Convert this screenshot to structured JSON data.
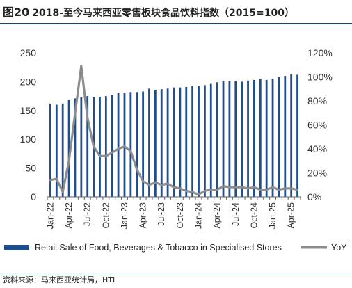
{
  "header": {
    "figure_number": "图20",
    "title": "2018-至今马来西亚零售板块食品饮料指数（2015=100）"
  },
  "footer": {
    "source": "资料来源：马来西亚统计局，HTI"
  },
  "colors": {
    "bars": "#1f4e8c",
    "line": "#8c8c8c",
    "rule": "#1f3f7a"
  },
  "chart_data": {
    "type": "bar",
    "x": [
      "Jan-22",
      "Feb-22",
      "Mar-22",
      "Apr-22",
      "May-22",
      "Jun-22",
      "Jul-22",
      "Aug-22",
      "Sep-22",
      "Oct-22",
      "Nov-22",
      "Dec-22",
      "Jan-23",
      "Feb-23",
      "Mar-23",
      "Apr-23",
      "May-23",
      "Jun-23",
      "Jul-23",
      "Aug-23",
      "Sep-23",
      "Oct-23",
      "Nov-23",
      "Dec-23",
      "Jan-24",
      "Feb-24",
      "Mar-24",
      "Apr-24",
      "May-24",
      "Jun-24",
      "Jul-24",
      "Aug-24",
      "Sep-24",
      "Oct-24",
      "Nov-24",
      "Dec-24",
      "Jan-25",
      "Feb-25",
      "Mar-25",
      "Apr-25",
      "May-25"
    ],
    "x_tick_labels": [
      "Jan-22",
      "Apr-22",
      "Jul-22",
      "Oct-22",
      "Jan-23",
      "Apr-23",
      "Jul-23",
      "Oct-23",
      "Jan-24",
      "Apr-24",
      "Jul-24",
      "Oct-24",
      "Jan-25",
      "Apr-25"
    ],
    "series": [
      {
        "name": "Retail Sale of Food, Beverages & Tobacco in Specialised Stores",
        "type": "bar",
        "axis": "left",
        "values": [
          162,
          160,
          162,
          168,
          171,
          173,
          175,
          173,
          174,
          175,
          177,
          180,
          180,
          182,
          182,
          183,
          188,
          186,
          187,
          188,
          190,
          190,
          191,
          193,
          192,
          194,
          196,
          199,
          201,
          201,
          201,
          200,
          202,
          203,
          205,
          203,
          205,
          208,
          210,
          213,
          212
        ]
      },
      {
        "name": "YoY",
        "type": "line",
        "axis": "right",
        "values": [
          14,
          15,
          4,
          30,
          70,
          109,
          66,
          42,
          34,
          34,
          37,
          40,
          42,
          38,
          23,
          13,
          10,
          12,
          10,
          11,
          8,
          7,
          5,
          4,
          2,
          5,
          6,
          6,
          9,
          8,
          8,
          8,
          7,
          8,
          6,
          6,
          8,
          6,
          7,
          7,
          6
        ]
      }
    ],
    "y_left": {
      "min": 0,
      "max": 250,
      "ticks": [
        0,
        50,
        100,
        150,
        200,
        250
      ]
    },
    "y_right": {
      "min": 0,
      "max": 120,
      "ticks": [
        "0%",
        "20%",
        "40%",
        "60%",
        "80%",
        "100%",
        "120%"
      ]
    },
    "legend_position": "bottom",
    "grid": false
  }
}
